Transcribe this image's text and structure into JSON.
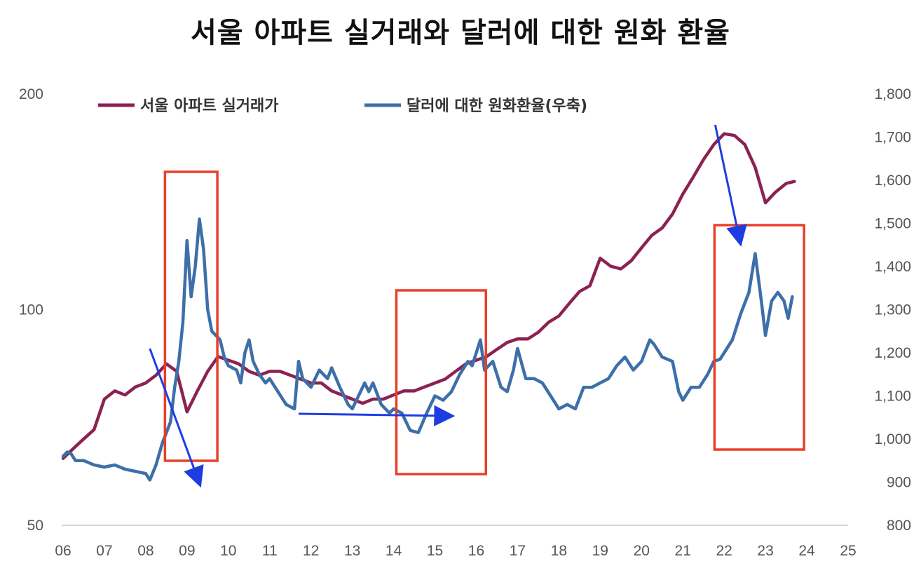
{
  "title": "서울 아파트 실거래와 달러에 대한 원화 환율",
  "chart_data": {
    "type": "line",
    "title": "서울 아파트 실거래와 달러에 대한 원화 환율",
    "xlabel": "",
    "ylabel_left": "",
    "ylabel_right": "",
    "x_ticks": [
      "06",
      "07",
      "08",
      "09",
      "10",
      "11",
      "12",
      "13",
      "14",
      "15",
      "16",
      "17",
      "18",
      "19",
      "20",
      "21",
      "22",
      "23",
      "24",
      "25"
    ],
    "x_range": [
      2006,
      2025
    ],
    "y_left": {
      "scale": "log",
      "range": [
        50,
        200
      ],
      "ticks": [
        "200",
        "100",
        "50"
      ],
      "tick_values": [
        200,
        100,
        50
      ]
    },
    "y_right": {
      "scale": "linear",
      "range": [
        800,
        1800
      ],
      "ticks": [
        "1,800",
        "1,700",
        "1,600",
        "1,500",
        "1,400",
        "1,300",
        "1,200",
        "1,100",
        "1,000",
        "900",
        "800"
      ],
      "tick_values": [
        1800,
        1700,
        1600,
        1500,
        1400,
        1300,
        1200,
        1100,
        1000,
        900,
        800
      ]
    },
    "legend_position": "top",
    "grid": false,
    "series": [
      {
        "name": "서울 아파트 실거래가",
        "axis": "left",
        "color": "#8B2252",
        "points": [
          [
            2006.0,
            62
          ],
          [
            2006.25,
            64
          ],
          [
            2006.5,
            66
          ],
          [
            2006.75,
            68
          ],
          [
            2007.0,
            75
          ],
          [
            2007.25,
            77
          ],
          [
            2007.5,
            76
          ],
          [
            2007.75,
            78
          ],
          [
            2008.0,
            79
          ],
          [
            2008.25,
            81
          ],
          [
            2008.5,
            84
          ],
          [
            2008.75,
            82
          ],
          [
            2009.0,
            72
          ],
          [
            2009.25,
            77
          ],
          [
            2009.5,
            82
          ],
          [
            2009.75,
            86
          ],
          [
            2010.0,
            85
          ],
          [
            2010.25,
            84
          ],
          [
            2010.5,
            82
          ],
          [
            2010.75,
            81
          ],
          [
            2011.0,
            82
          ],
          [
            2011.25,
            82
          ],
          [
            2011.5,
            81
          ],
          [
            2011.75,
            80
          ],
          [
            2012.0,
            79
          ],
          [
            2012.25,
            79
          ],
          [
            2012.5,
            77
          ],
          [
            2012.75,
            76
          ],
          [
            2013.0,
            75
          ],
          [
            2013.25,
            74
          ],
          [
            2013.5,
            75
          ],
          [
            2013.75,
            75
          ],
          [
            2014.0,
            76
          ],
          [
            2014.25,
            77
          ],
          [
            2014.5,
            77
          ],
          [
            2014.75,
            78
          ],
          [
            2015.0,
            79
          ],
          [
            2015.25,
            80
          ],
          [
            2015.5,
            82
          ],
          [
            2015.75,
            84
          ],
          [
            2016.0,
            85
          ],
          [
            2016.25,
            86
          ],
          [
            2016.5,
            88
          ],
          [
            2016.75,
            90
          ],
          [
            2017.0,
            91
          ],
          [
            2017.25,
            91
          ],
          [
            2017.5,
            93
          ],
          [
            2017.75,
            96
          ],
          [
            2018.0,
            98
          ],
          [
            2018.25,
            102
          ],
          [
            2018.5,
            106
          ],
          [
            2018.75,
            108
          ],
          [
            2019.0,
            118
          ],
          [
            2019.25,
            115
          ],
          [
            2019.5,
            114
          ],
          [
            2019.75,
            117
          ],
          [
            2020.0,
            122
          ],
          [
            2020.25,
            127
          ],
          [
            2020.5,
            130
          ],
          [
            2020.75,
            136
          ],
          [
            2021.0,
            145
          ],
          [
            2021.25,
            153
          ],
          [
            2021.5,
            162
          ],
          [
            2021.75,
            170
          ],
          [
            2022.0,
            176
          ],
          [
            2022.25,
            175
          ],
          [
            2022.5,
            170
          ],
          [
            2022.75,
            158
          ],
          [
            2023.0,
            141
          ],
          [
            2023.25,
            146
          ],
          [
            2023.5,
            150
          ],
          [
            2023.7,
            151
          ]
        ]
      },
      {
        "name": "달러에 대한 원화환율(우축)",
        "axis": "right",
        "color": "#3D6FA8",
        "points": [
          [
            2006.0,
            960
          ],
          [
            2006.1,
            970
          ],
          [
            2006.2,
            965
          ],
          [
            2006.3,
            950
          ],
          [
            2006.5,
            950
          ],
          [
            2006.75,
            940
          ],
          [
            2007.0,
            935
          ],
          [
            2007.25,
            940
          ],
          [
            2007.5,
            930
          ],
          [
            2007.75,
            925
          ],
          [
            2008.0,
            920
          ],
          [
            2008.1,
            905
          ],
          [
            2008.25,
            940
          ],
          [
            2008.4,
            990
          ],
          [
            2008.6,
            1040
          ],
          [
            2008.7,
            1120
          ],
          [
            2008.8,
            1180
          ],
          [
            2008.9,
            1270
          ],
          [
            2009.0,
            1460
          ],
          [
            2009.1,
            1330
          ],
          [
            2009.2,
            1400
          ],
          [
            2009.3,
            1510
          ],
          [
            2009.4,
            1440
          ],
          [
            2009.5,
            1300
          ],
          [
            2009.6,
            1250
          ],
          [
            2009.7,
            1240
          ],
          [
            2009.8,
            1230
          ],
          [
            2009.9,
            1190
          ],
          [
            2010.0,
            1170
          ],
          [
            2010.2,
            1160
          ],
          [
            2010.3,
            1130
          ],
          [
            2010.4,
            1200
          ],
          [
            2010.5,
            1230
          ],
          [
            2010.6,
            1180
          ],
          [
            2010.75,
            1150
          ],
          [
            2010.9,
            1130
          ],
          [
            2011.0,
            1140
          ],
          [
            2011.2,
            1110
          ],
          [
            2011.4,
            1080
          ],
          [
            2011.6,
            1070
          ],
          [
            2011.7,
            1180
          ],
          [
            2011.8,
            1140
          ],
          [
            2011.9,
            1130
          ],
          [
            2012.0,
            1120
          ],
          [
            2012.2,
            1160
          ],
          [
            2012.4,
            1140
          ],
          [
            2012.5,
            1165
          ],
          [
            2012.7,
            1120
          ],
          [
            2012.9,
            1080
          ],
          [
            2013.0,
            1070
          ],
          [
            2013.2,
            1110
          ],
          [
            2013.3,
            1130
          ],
          [
            2013.4,
            1110
          ],
          [
            2013.5,
            1130
          ],
          [
            2013.7,
            1080
          ],
          [
            2013.9,
            1060
          ],
          [
            2014.0,
            1070
          ],
          [
            2014.2,
            1060
          ],
          [
            2014.4,
            1020
          ],
          [
            2014.6,
            1015
          ],
          [
            2014.8,
            1060
          ],
          [
            2015.0,
            1100
          ],
          [
            2015.2,
            1090
          ],
          [
            2015.4,
            1110
          ],
          [
            2015.6,
            1150
          ],
          [
            2015.8,
            1180
          ],
          [
            2015.9,
            1170
          ],
          [
            2016.0,
            1200
          ],
          [
            2016.1,
            1230
          ],
          [
            2016.2,
            1160
          ],
          [
            2016.4,
            1180
          ],
          [
            2016.6,
            1120
          ],
          [
            2016.75,
            1110
          ],
          [
            2016.9,
            1160
          ],
          [
            2017.0,
            1210
          ],
          [
            2017.2,
            1140
          ],
          [
            2017.4,
            1140
          ],
          [
            2017.6,
            1130
          ],
          [
            2017.8,
            1100
          ],
          [
            2018.0,
            1070
          ],
          [
            2018.2,
            1080
          ],
          [
            2018.4,
            1070
          ],
          [
            2018.6,
            1120
          ],
          [
            2018.8,
            1120
          ],
          [
            2019.0,
            1130
          ],
          [
            2019.2,
            1140
          ],
          [
            2019.4,
            1170
          ],
          [
            2019.6,
            1190
          ],
          [
            2019.8,
            1160
          ],
          [
            2020.0,
            1180
          ],
          [
            2020.2,
            1230
          ],
          [
            2020.3,
            1220
          ],
          [
            2020.5,
            1190
          ],
          [
            2020.75,
            1180
          ],
          [
            2020.9,
            1110
          ],
          [
            2021.0,
            1090
          ],
          [
            2021.2,
            1120
          ],
          [
            2021.4,
            1120
          ],
          [
            2021.6,
            1150
          ],
          [
            2021.75,
            1180
          ],
          [
            2021.9,
            1185
          ],
          [
            2022.0,
            1200
          ],
          [
            2022.2,
            1230
          ],
          [
            2022.4,
            1290
          ],
          [
            2022.6,
            1340
          ],
          [
            2022.75,
            1430
          ],
          [
            2022.9,
            1320
          ],
          [
            2023.0,
            1240
          ],
          [
            2023.15,
            1320
          ],
          [
            2023.3,
            1340
          ],
          [
            2023.45,
            1320
          ],
          [
            2023.55,
            1280
          ],
          [
            2023.65,
            1330
          ]
        ]
      }
    ],
    "annotations": [
      {
        "type": "highlight-box",
        "x_range": [
          2008.5,
          2009.7
        ]
      },
      {
        "type": "highlight-box",
        "x_range": [
          2014.1,
          2016.2
        ]
      },
      {
        "type": "highlight-box",
        "x_range": [
          2021.8,
          2023.9
        ]
      },
      {
        "type": "arrow",
        "from": [
          2008.1,
          93
        ],
        "to": [
          2009.2,
          61
        ]
      },
      {
        "type": "arrow",
        "from": [
          2011.7,
          1050
        ],
        "to": [
          2015.2,
          1050
        ]
      },
      {
        "type": "arrow",
        "from": [
          2021.75,
          174
        ],
        "to": [
          2022.3,
          1460
        ]
      }
    ]
  }
}
